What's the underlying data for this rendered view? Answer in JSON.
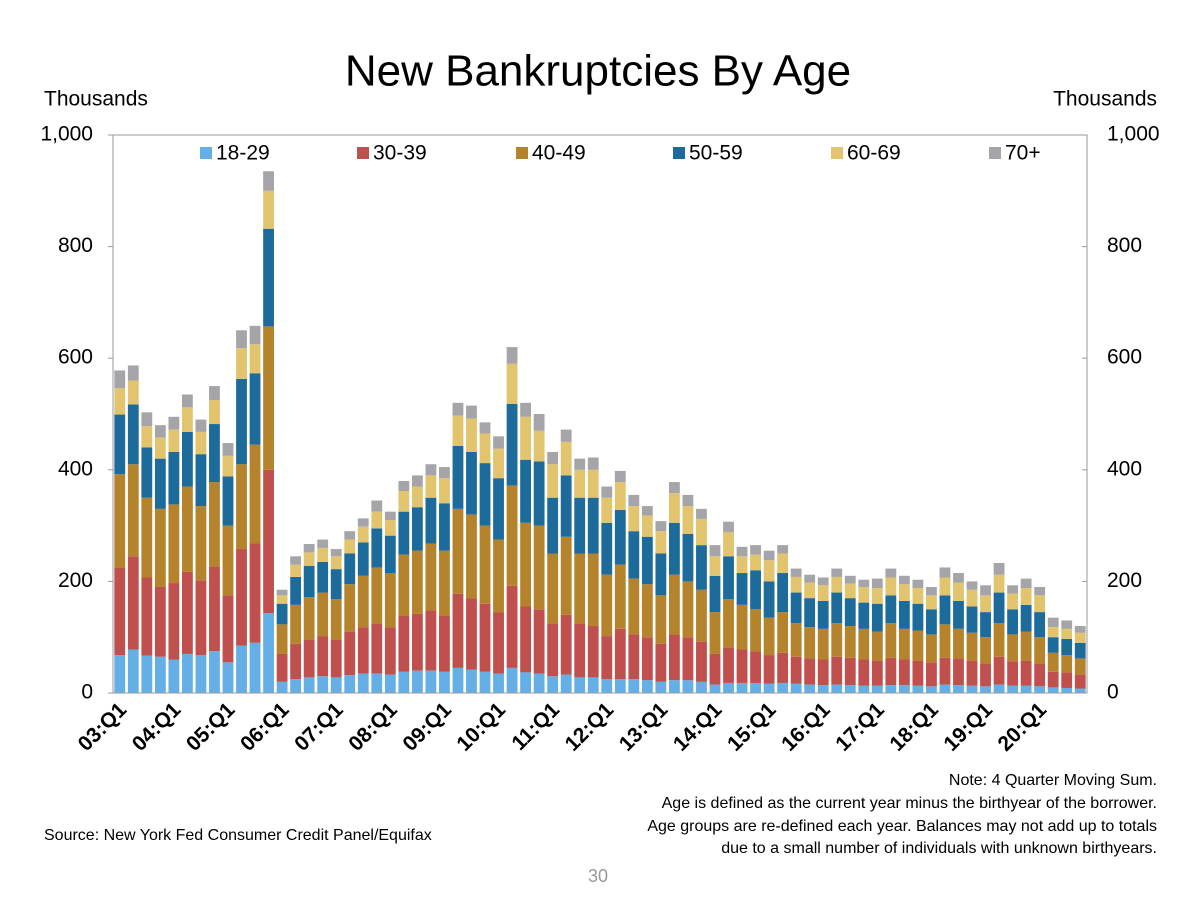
{
  "chart_data": {
    "type": "stacked_bar",
    "title": "New Bankruptcies By Age",
    "y_label": "Thousands",
    "y2_label": "Thousands",
    "categories": [
      "03:Q1",
      null,
      null,
      null,
      "04:Q1",
      null,
      null,
      null,
      "05:Q1",
      null,
      null,
      null,
      "06:Q1",
      null,
      null,
      null,
      "07:Q1",
      null,
      null,
      null,
      "08:Q1",
      null,
      null,
      null,
      "09:Q1",
      null,
      null,
      null,
      "10:Q1",
      null,
      null,
      null,
      "11:Q1",
      null,
      null,
      null,
      "12:Q1",
      null,
      null,
      null,
      "13:Q1",
      null,
      null,
      null,
      "14:Q1",
      null,
      null,
      null,
      "15:Q1",
      null,
      null,
      null,
      "16:Q1",
      null,
      null,
      null,
      "17:Q1",
      null,
      null,
      null,
      "18:Q1",
      null,
      null,
      null,
      "19:Q1",
      null,
      null,
      null,
      "20:Q1",
      null,
      null,
      null
    ],
    "series": [
      {
        "name": "18-29",
        "color": "#64b0e6",
        "values": [
          68,
          78,
          67,
          65,
          60,
          70,
          68,
          75,
          55,
          85,
          90,
          143,
          20,
          25,
          28,
          30,
          28,
          32,
          35,
          35,
          33,
          38,
          40,
          40,
          38,
          45,
          42,
          38,
          35,
          45,
          37,
          35,
          30,
          33,
          28,
          28,
          25,
          25,
          25,
          23,
          20,
          23,
          23,
          20,
          15,
          18,
          18,
          18,
          17,
          18,
          17,
          15,
          14,
          15,
          14,
          13,
          13,
          14,
          14,
          13,
          12,
          15,
          14,
          13,
          12,
          15,
          13,
          13,
          12,
          10,
          9,
          8
        ]
      },
      {
        "name": "30-39",
        "color": "#c0504d",
        "values": [
          156,
          167,
          140,
          125,
          137,
          147,
          134,
          152,
          120,
          173,
          178,
          257,
          50,
          63,
          67,
          72,
          67,
          78,
          83,
          90,
          85,
          100,
          102,
          108,
          100,
          133,
          128,
          122,
          110,
          147,
          118,
          115,
          95,
          107,
          97,
          92,
          77,
          90,
          80,
          77,
          68,
          82,
          77,
          72,
          55,
          64,
          60,
          57,
          51,
          54,
          48,
          47,
          46,
          50,
          49,
          47,
          45,
          49,
          46,
          45,
          43,
          48,
          48,
          45,
          40,
          50,
          44,
          45,
          40,
          28,
          28,
          25
        ]
      },
      {
        "name": "40-49",
        "color": "#b4832c",
        "values": [
          168,
          165,
          143,
          140,
          141,
          153,
          133,
          151,
          125,
          152,
          177,
          257,
          53,
          70,
          77,
          78,
          73,
          85,
          92,
          100,
          97,
          110,
          113,
          120,
          117,
          152,
          150,
          140,
          130,
          180,
          150,
          150,
          125,
          140,
          125,
          130,
          110,
          115,
          100,
          95,
          87,
          107,
          100,
          93,
          75,
          86,
          80,
          75,
          67,
          73,
          60,
          56,
          55,
          60,
          57,
          55,
          52,
          62,
          55,
          54,
          50,
          60,
          53,
          50,
          48,
          60,
          48,
          52,
          48,
          34,
          31,
          29
        ]
      },
      {
        "name": "50-59",
        "color": "#1c6b9b",
        "values": [
          107,
          107,
          90,
          90,
          94,
          98,
          93,
          104,
          88,
          153,
          128,
          175,
          37,
          50,
          56,
          55,
          54,
          55,
          60,
          70,
          67,
          77,
          78,
          82,
          85,
          113,
          112,
          112,
          110,
          146,
          113,
          115,
          100,
          110,
          100,
          100,
          93,
          98,
          85,
          85,
          75,
          93,
          85,
          80,
          65,
          77,
          57,
          70,
          65,
          70,
          55,
          52,
          50,
          55,
          50,
          47,
          50,
          50,
          50,
          48,
          45,
          52,
          50,
          47,
          45,
          55,
          45,
          48,
          45,
          28,
          29,
          28
        ]
      },
      {
        "name": "60-69",
        "color": "#e2c46e",
        "values": [
          47,
          43,
          38,
          38,
          40,
          44,
          40,
          43,
          37,
          55,
          52,
          68,
          15,
          22,
          24,
          25,
          23,
          25,
          28,
          30,
          28,
          37,
          37,
          40,
          45,
          54,
          60,
          53,
          53,
          72,
          77,
          55,
          60,
          60,
          50,
          50,
          45,
          50,
          45,
          38,
          40,
          53,
          50,
          47,
          35,
          43,
          30,
          28,
          38,
          35,
          28,
          28,
          28,
          28,
          26,
          28,
          28,
          32,
          30,
          28,
          25,
          32,
          33,
          30,
          30,
          32,
          28,
          30,
          30,
          18,
          18,
          18
        ]
      },
      {
        "name": "70+",
        "color": "#a5a5a9",
        "values": [
          32,
          27,
          25,
          22,
          23,
          23,
          22,
          25,
          23,
          32,
          33,
          35,
          10,
          15,
          15,
          15,
          13,
          15,
          15,
          20,
          15,
          18,
          20,
          20,
          20,
          23,
          23,
          20,
          22,
          30,
          25,
          30,
          22,
          22,
          20,
          22,
          20,
          20,
          20,
          17,
          18,
          20,
          20,
          18,
          20,
          19,
          17,
          17,
          17,
          15,
          15,
          14,
          14,
          15,
          14,
          13,
          17,
          16,
          15,
          15,
          15,
          18,
          17,
          15,
          18,
          21,
          15,
          17,
          15,
          17,
          15,
          12
        ]
      }
    ],
    "ylim": [
      0,
      1000
    ],
    "yticks": [
      0,
      200,
      400,
      600,
      800,
      {
        "value": 1000,
        "label": "1,000"
      }
    ],
    "y2lim": [
      0,
      1000
    ],
    "y2ticks": [
      0,
      200,
      400,
      600,
      800,
      {
        "value": 1000,
        "label": "1,000"
      }
    ],
    "notes": [
      "Note: 4 Quarter Moving Sum.",
      "Age is defined as the current year minus the birthyear of the borrower.",
      "Age groups are re-defined each year. Balances may not add up to totals",
      "due to a small number of individuals with unknown birthyears."
    ],
    "source": "Source: New York Fed Consumer Credit Panel/Equifax",
    "page_number": "30"
  }
}
